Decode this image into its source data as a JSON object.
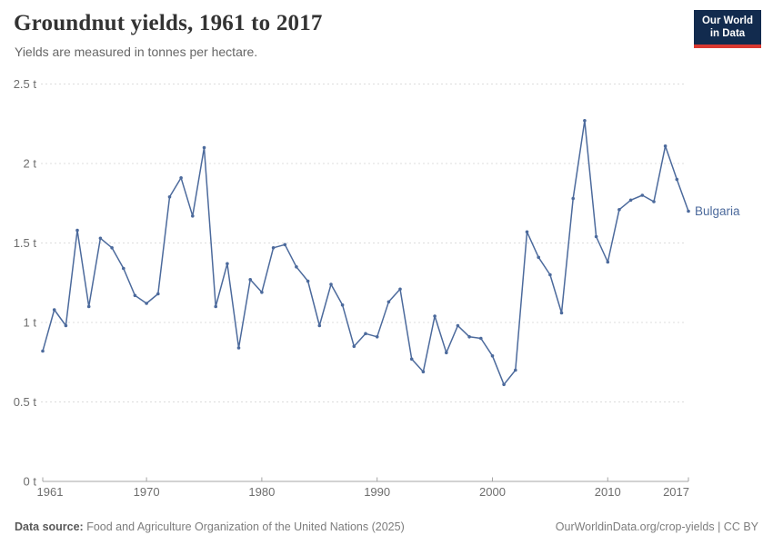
{
  "header": {
    "title": "Groundnut yields, 1961 to 2017",
    "subtitle": "Yields are measured in tonnes per hectare.",
    "logo": {
      "line1": "Our World",
      "line2": "in Data",
      "bg_color": "#122b4e",
      "accent_color": "#d93830"
    }
  },
  "chart_data": {
    "type": "line",
    "title": "Groundnut yields, 1961 to 2017",
    "ylabel": "tonnes per hectare",
    "xlim": [
      1961,
      2017
    ],
    "ylim": [
      0,
      2.5
    ],
    "grid": "horizontal-dashed",
    "legend_position": "end-of-line",
    "colors": {
      "line": "#4c6a9c",
      "grid": "#dcdcdc",
      "axis": "#a5a5a5",
      "tick_text": "#6e6e6e"
    },
    "y_ticks": [
      {
        "value": 0,
        "label": "0 t"
      },
      {
        "value": 0.5,
        "label": "0.5 t"
      },
      {
        "value": 1,
        "label": "1 t"
      },
      {
        "value": 1.5,
        "label": "1.5 t"
      },
      {
        "value": 2,
        "label": "2 t"
      },
      {
        "value": 2.5,
        "label": "2.5 t"
      }
    ],
    "x_ticks": [
      {
        "value": 1961,
        "label": "1961"
      },
      {
        "value": 1970,
        "label": "1970"
      },
      {
        "value": 1980,
        "label": "1980"
      },
      {
        "value": 1990,
        "label": "1990"
      },
      {
        "value": 2000,
        "label": "2000"
      },
      {
        "value": 2010,
        "label": "2010"
      },
      {
        "value": 2017,
        "label": "2017"
      }
    ],
    "series": [
      {
        "name": "Bulgaria",
        "color": "#4c6a9c",
        "x": [
          1961,
          1962,
          1963,
          1964,
          1965,
          1966,
          1967,
          1968,
          1969,
          1970,
          1971,
          1972,
          1973,
          1974,
          1975,
          1976,
          1977,
          1978,
          1979,
          1980,
          1981,
          1982,
          1983,
          1984,
          1985,
          1986,
          1987,
          1988,
          1989,
          1990,
          1991,
          1992,
          1993,
          1994,
          1995,
          1996,
          1997,
          1998,
          1999,
          2000,
          2001,
          2002,
          2003,
          2004,
          2005,
          2006,
          2007,
          2008,
          2009,
          2010,
          2011,
          2012,
          2013,
          2014,
          2015,
          2016,
          2017
        ],
        "values": [
          0.82,
          1.08,
          0.98,
          1.58,
          1.1,
          1.53,
          1.47,
          1.34,
          1.17,
          1.12,
          1.18,
          1.79,
          1.91,
          1.67,
          2.1,
          1.1,
          1.37,
          0.84,
          1.27,
          1.19,
          1.47,
          1.49,
          1.35,
          1.26,
          0.98,
          1.24,
          1.11,
          0.85,
          0.93,
          0.91,
          1.13,
          1.21,
          0.77,
          0.69,
          1.04,
          0.81,
          0.98,
          0.91,
          0.9,
          0.79,
          0.61,
          0.7,
          1.57,
          1.41,
          1.3,
          1.06,
          1.78,
          2.27,
          1.54,
          1.38,
          1.71,
          1.77,
          1.8,
          1.76,
          2.11,
          1.9,
          1.7
        ]
      }
    ]
  },
  "footer": {
    "source_label": "Data source:",
    "source_text": "Food and Agriculture Organization of the United Nations (2025)",
    "link_text": "OurWorldinData.org/crop-yields | CC BY"
  }
}
